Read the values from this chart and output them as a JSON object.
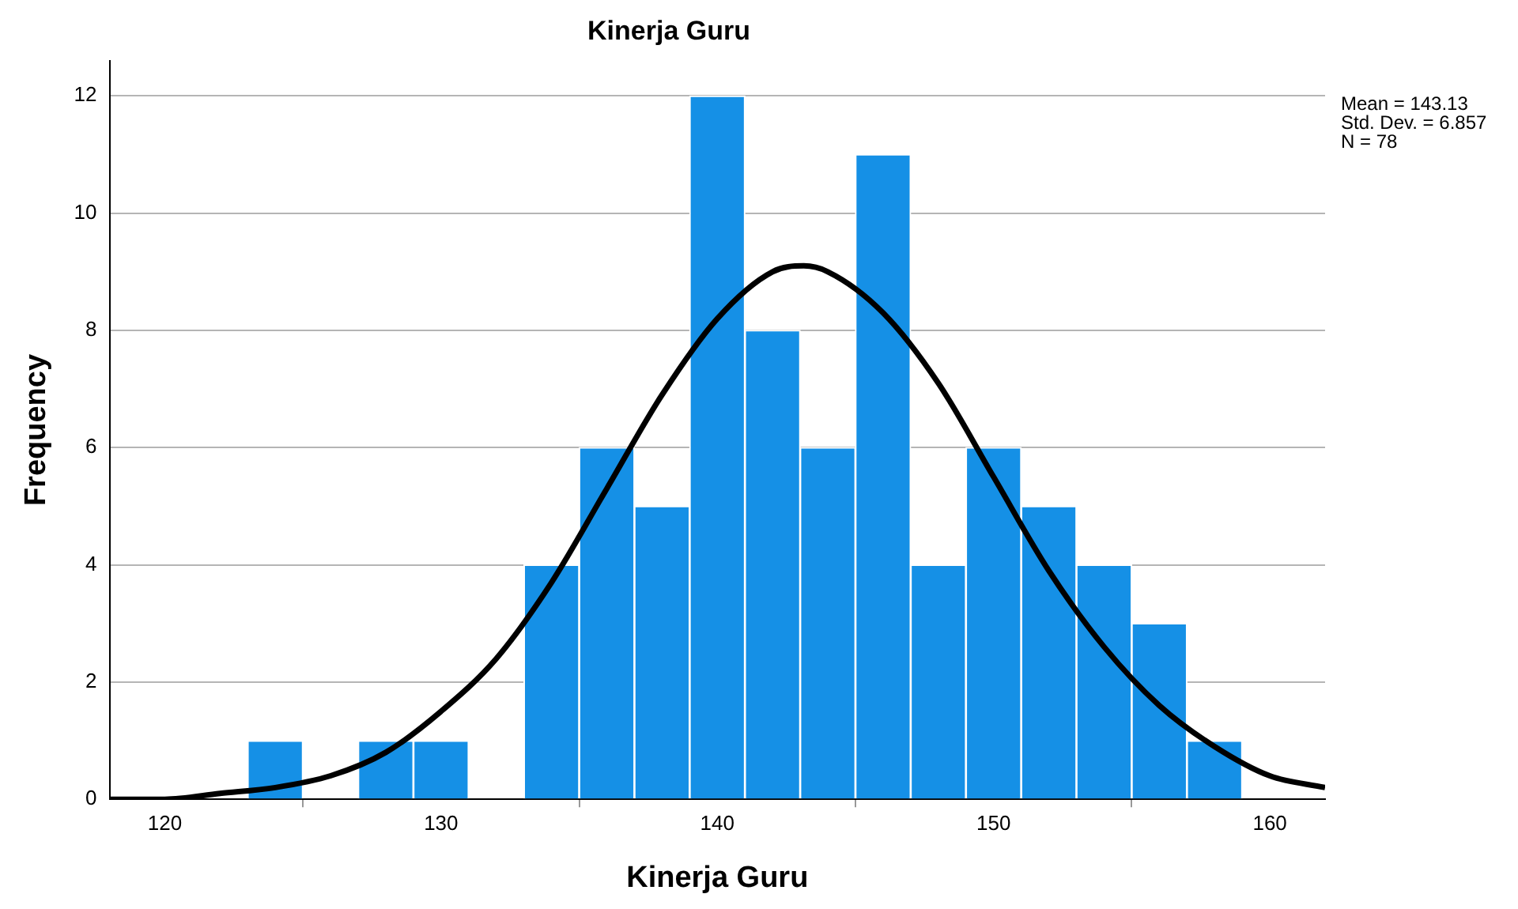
{
  "chart_data": {
    "type": "histogram",
    "title": "Kinerja Guru",
    "xlabel": "Kinerja Guru",
    "ylabel": "Frequency",
    "bins": [
      123,
      125,
      127,
      129,
      131,
      133,
      135,
      137,
      139,
      141,
      143,
      145,
      147,
      149,
      151,
      153,
      155,
      157,
      159
    ],
    "values": [
      1,
      0,
      1,
      1,
      0,
      4,
      6,
      5,
      12,
      8,
      6,
      11,
      4,
      6,
      5,
      4,
      3,
      1
    ],
    "color": "#1590e6",
    "series": [
      {
        "type": "line",
        "color": "#000000",
        "x": [
          118,
          120,
          122,
          124,
          126,
          128,
          130,
          132,
          134,
          136,
          138,
          140,
          142,
          143.13,
          144,
          146,
          148,
          150,
          152,
          154,
          156,
          158,
          160,
          162
        ],
        "values": [
          0.0,
          0.0,
          0.1,
          0.2,
          0.4,
          0.8,
          1.5,
          2.4,
          3.7,
          5.3,
          6.9,
          8.2,
          9.0,
          9.1,
          9.0,
          8.3,
          7.1,
          5.5,
          3.9,
          2.6,
          1.6,
          0.9,
          0.4,
          0.2
        ]
      }
    ],
    "xlim": [
      118,
      162
    ],
    "xticks": [
      120,
      130,
      140,
      150,
      160
    ],
    "ylim": [
      0,
      12.6
    ],
    "yticks": [
      0,
      2,
      4,
      6,
      8,
      10,
      12
    ],
    "grid": "y",
    "marker": "none",
    "annotations": [
      "Mean = 143.13",
      "Std. Dev. = 6.857",
      "N = 78"
    ]
  }
}
